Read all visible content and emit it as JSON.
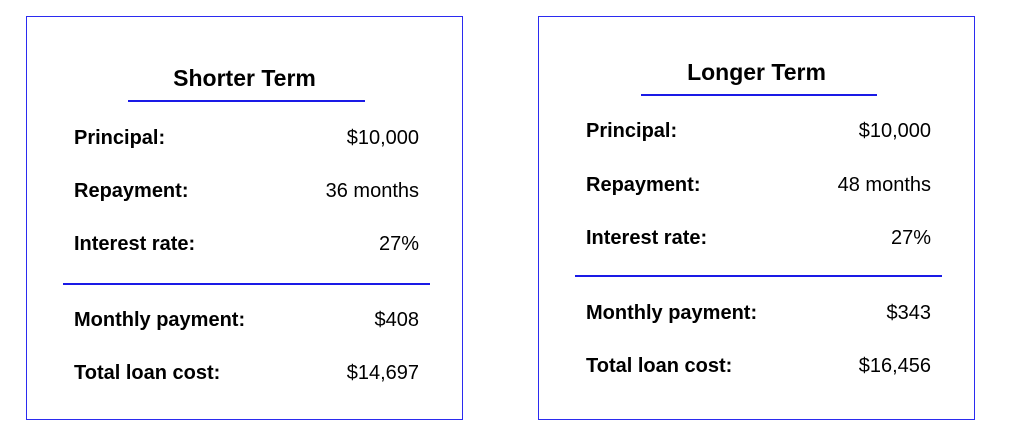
{
  "accent_color": "#1a1ae6",
  "cards": [
    {
      "title": "Shorter Term",
      "rows": [
        {
          "label": "Principal:",
          "value": "$10,000"
        },
        {
          "label": "Repayment:",
          "value": "36 months"
        },
        {
          "label": "Interest rate:",
          "value": "27%"
        },
        {
          "label": "Monthly payment:",
          "value": "$408"
        },
        {
          "label": "Total loan cost:",
          "value": "$14,697"
        }
      ]
    },
    {
      "title": "Longer Term",
      "rows": [
        {
          "label": "Principal:",
          "value": "$10,000"
        },
        {
          "label": "Repayment:",
          "value": "48 months"
        },
        {
          "label": "Interest rate:",
          "value": "27%"
        },
        {
          "label": "Monthly payment:",
          "value": "$343"
        },
        {
          "label": "Total loan cost:",
          "value": "$16,456"
        }
      ]
    }
  ]
}
